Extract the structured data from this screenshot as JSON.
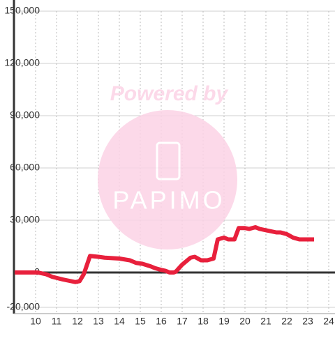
{
  "chart_data": {
    "type": "line",
    "watermark": {
      "title": "Powered by",
      "brand": "PAPIMO"
    },
    "x": [
      9,
      10.1,
      10.5,
      10.8,
      11.3,
      11.9,
      12.1,
      12.3,
      12.6,
      13,
      13.3,
      14,
      14.5,
      14.8,
      15.1,
      15.5,
      15.7,
      16,
      16.2,
      16.4,
      16.6,
      16.7,
      17,
      17.4,
      17.6,
      17.9,
      18.2,
      18.5,
      18.7,
      19,
      19.2,
      19.5,
      19.7,
      20,
      20.2,
      20.5,
      20.7,
      21.1,
      21.5,
      21.7,
      22,
      22.3,
      22.6,
      23.3
    ],
    "series": [
      {
        "color": "#e8203c",
        "values": [
          0,
          0,
          -1000,
          -2500,
          -4000,
          -5500,
          -5000,
          -1000,
          9500,
          9000,
          8500,
          8000,
          7000,
          5500,
          5000,
          3500,
          2500,
          1500,
          1000,
          0,
          0,
          500,
          4500,
          8500,
          9000,
          7000,
          7000,
          8000,
          19000,
          20000,
          19000,
          19000,
          25500,
          25500,
          25000,
          26000,
          25000,
          24000,
          23000,
          23000,
          22000,
          20000,
          19000,
          19000
        ]
      }
    ],
    "xlim": [
      9,
      24.3
    ],
    "xticks": [
      10,
      11,
      12,
      13,
      14,
      15,
      16,
      17,
      18,
      19,
      20,
      21,
      22,
      23,
      24
    ],
    "ylim": [
      -20000,
      150000
    ],
    "yticks": [
      {
        "value": -20000,
        "label": "-20,000"
      },
      0,
      {
        "value": 30000,
        "label": "30,000"
      },
      {
        "value": 60000,
        "label": "60,000"
      },
      {
        "value": 90000,
        "label": "90,000"
      },
      {
        "value": 120000,
        "label": "120,000"
      },
      {
        "value": 150000,
        "label": "150,000"
      }
    ],
    "grid": true
  }
}
